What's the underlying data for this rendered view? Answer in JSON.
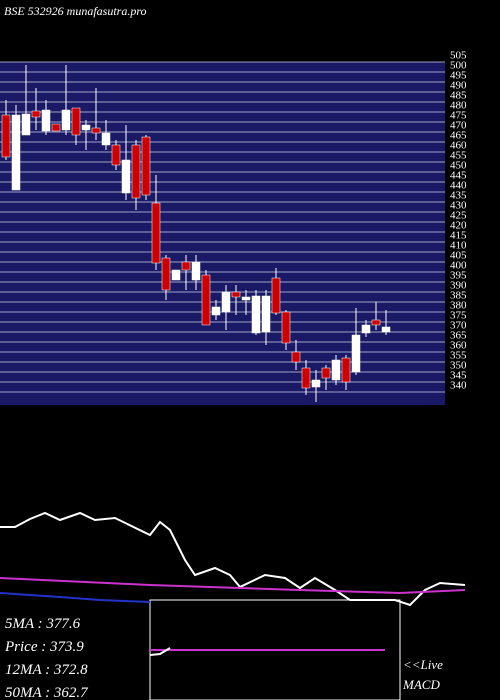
{
  "chart_data": [
    {
      "type": "candlestick",
      "title": "BSE 532926 munafasutra.pro",
      "categories": [
        null,
        null,
        null,
        null,
        null,
        null,
        null,
        null,
        null,
        null,
        null,
        null,
        null,
        null,
        null,
        null,
        null,
        null,
        null,
        null,
        null,
        null,
        null,
        null,
        null,
        null,
        null,
        null,
        null,
        null,
        null,
        null,
        null,
        null,
        null,
        null,
        null,
        null,
        null
      ],
      "open": [
        478.5,
        441,
        468.5,
        480.5,
        470.5,
        474,
        471,
        482,
        471,
        472,
        463.5,
        463.5,
        439.5,
        463.5,
        467.5,
        434.5,
        407,
        396,
        405,
        396,
        398.5,
        378.5,
        380,
        390,
        386,
        369.5,
        370,
        397,
        380,
        360,
        352,
        342.5,
        352,
        346,
        357,
        350,
        369.5,
        376,
        370
      ],
      "high": [
        486,
        483.5,
        503.5,
        492,
        486,
        474,
        503.5,
        482,
        476,
        492,
        476,
        466,
        473.5,
        466,
        468.5,
        448.5,
        408.5,
        401,
        408.5,
        408.5,
        401,
        386,
        393.5,
        393.5,
        391,
        391,
        391,
        402,
        381,
        366,
        356,
        351,
        353.5,
        358.5,
        358.5,
        382,
        376,
        385,
        381
      ],
      "low": [
        456,
        441,
        468.5,
        471,
        468.5,
        470.5,
        468.5,
        463.5,
        461,
        466,
        461,
        451,
        436,
        431,
        436,
        401,
        386,
        396,
        391,
        391,
        373.5,
        376,
        371,
        378.5,
        378.5,
        368.5,
        363.5,
        378.5,
        361,
        351,
        338.5,
        335,
        341,
        343.5,
        341,
        348.5,
        367.5,
        371,
        368.5
      ],
      "close": [
        457.5,
        478.5,
        479,
        477.5,
        481,
        470.5,
        481,
        468.5,
        473.5,
        469.5,
        469.5,
        453.5,
        456,
        437,
        438.5,
        404.5,
        391,
        401,
        401,
        405,
        373.5,
        382.5,
        390,
        387.5,
        387.5,
        388,
        388,
        379.5,
        364.5,
        355,
        342,
        346,
        347,
        356,
        345,
        368.5,
        373.5,
        373.5,
        372.5
      ],
      "up_color": "#ffffff",
      "down_color": "#cc0000",
      "ylim": [
        333.5,
        505
      ],
      "yticks": [
        340,
        345,
        350,
        355,
        360,
        365,
        370,
        375,
        380,
        385,
        390,
        395,
        400,
        405,
        410,
        415,
        420,
        425,
        430,
        435,
        440,
        445,
        450,
        455,
        460,
        465,
        470,
        475,
        480,
        485,
        490,
        495,
        500,
        505
      ],
      "grid": true,
      "stats": [
        {
          "label": "5MA",
          "value": 377.6
        },
        {
          "label": "Price",
          "value": 373.9
        },
        {
          "label": "12MA",
          "value": 372.8
        },
        {
          "label": "50MA",
          "value": 362.7
        }
      ]
    },
    {
      "type": "line",
      "ylim": [
        0,
        100
      ],
      "xlim": [
        0,
        500
      ],
      "series": [
        {
          "color": "#ffffff",
          "x": [
            0,
            15,
            30,
            45,
            60,
            80,
            95,
            115,
            150,
            160,
            170,
            185,
            195,
            215,
            230,
            240,
            265,
            285,
            300,
            315,
            335,
            350,
            395,
            410,
            425,
            440,
            465
          ],
          "values": [
            73,
            73,
            81,
            87,
            80,
            87,
            80,
            82,
            65,
            78,
            70,
            40,
            25,
            32,
            25,
            13,
            25,
            22,
            12,
            22,
            10,
            0,
            0,
            -5,
            10,
            17,
            15
          ]
        },
        {
          "color": "#cc33cc",
          "x": [
            0,
            150,
            300,
            400,
            465
          ],
          "values": [
            22,
            15,
            10,
            7,
            10
          ]
        },
        {
          "color": "#2233cc",
          "x": [
            0,
            60,
            100,
            150
          ],
          "values": [
            7,
            3,
            0,
            -2
          ]
        }
      ]
    },
    {
      "type": "line",
      "title": "MACD",
      "subtitle": "<<Live",
      "ylim": [
        0,
        100
      ],
      "xlim": [
        150,
        400
      ],
      "series": [
        {
          "color": "#cc33cc",
          "x": [
            150,
            385
          ],
          "values": [
            50,
            50
          ]
        },
        {
          "color": "#ffffff",
          "x": [
            150,
            160,
            170
          ],
          "values": [
            45,
            46,
            52
          ]
        }
      ]
    }
  ]
}
